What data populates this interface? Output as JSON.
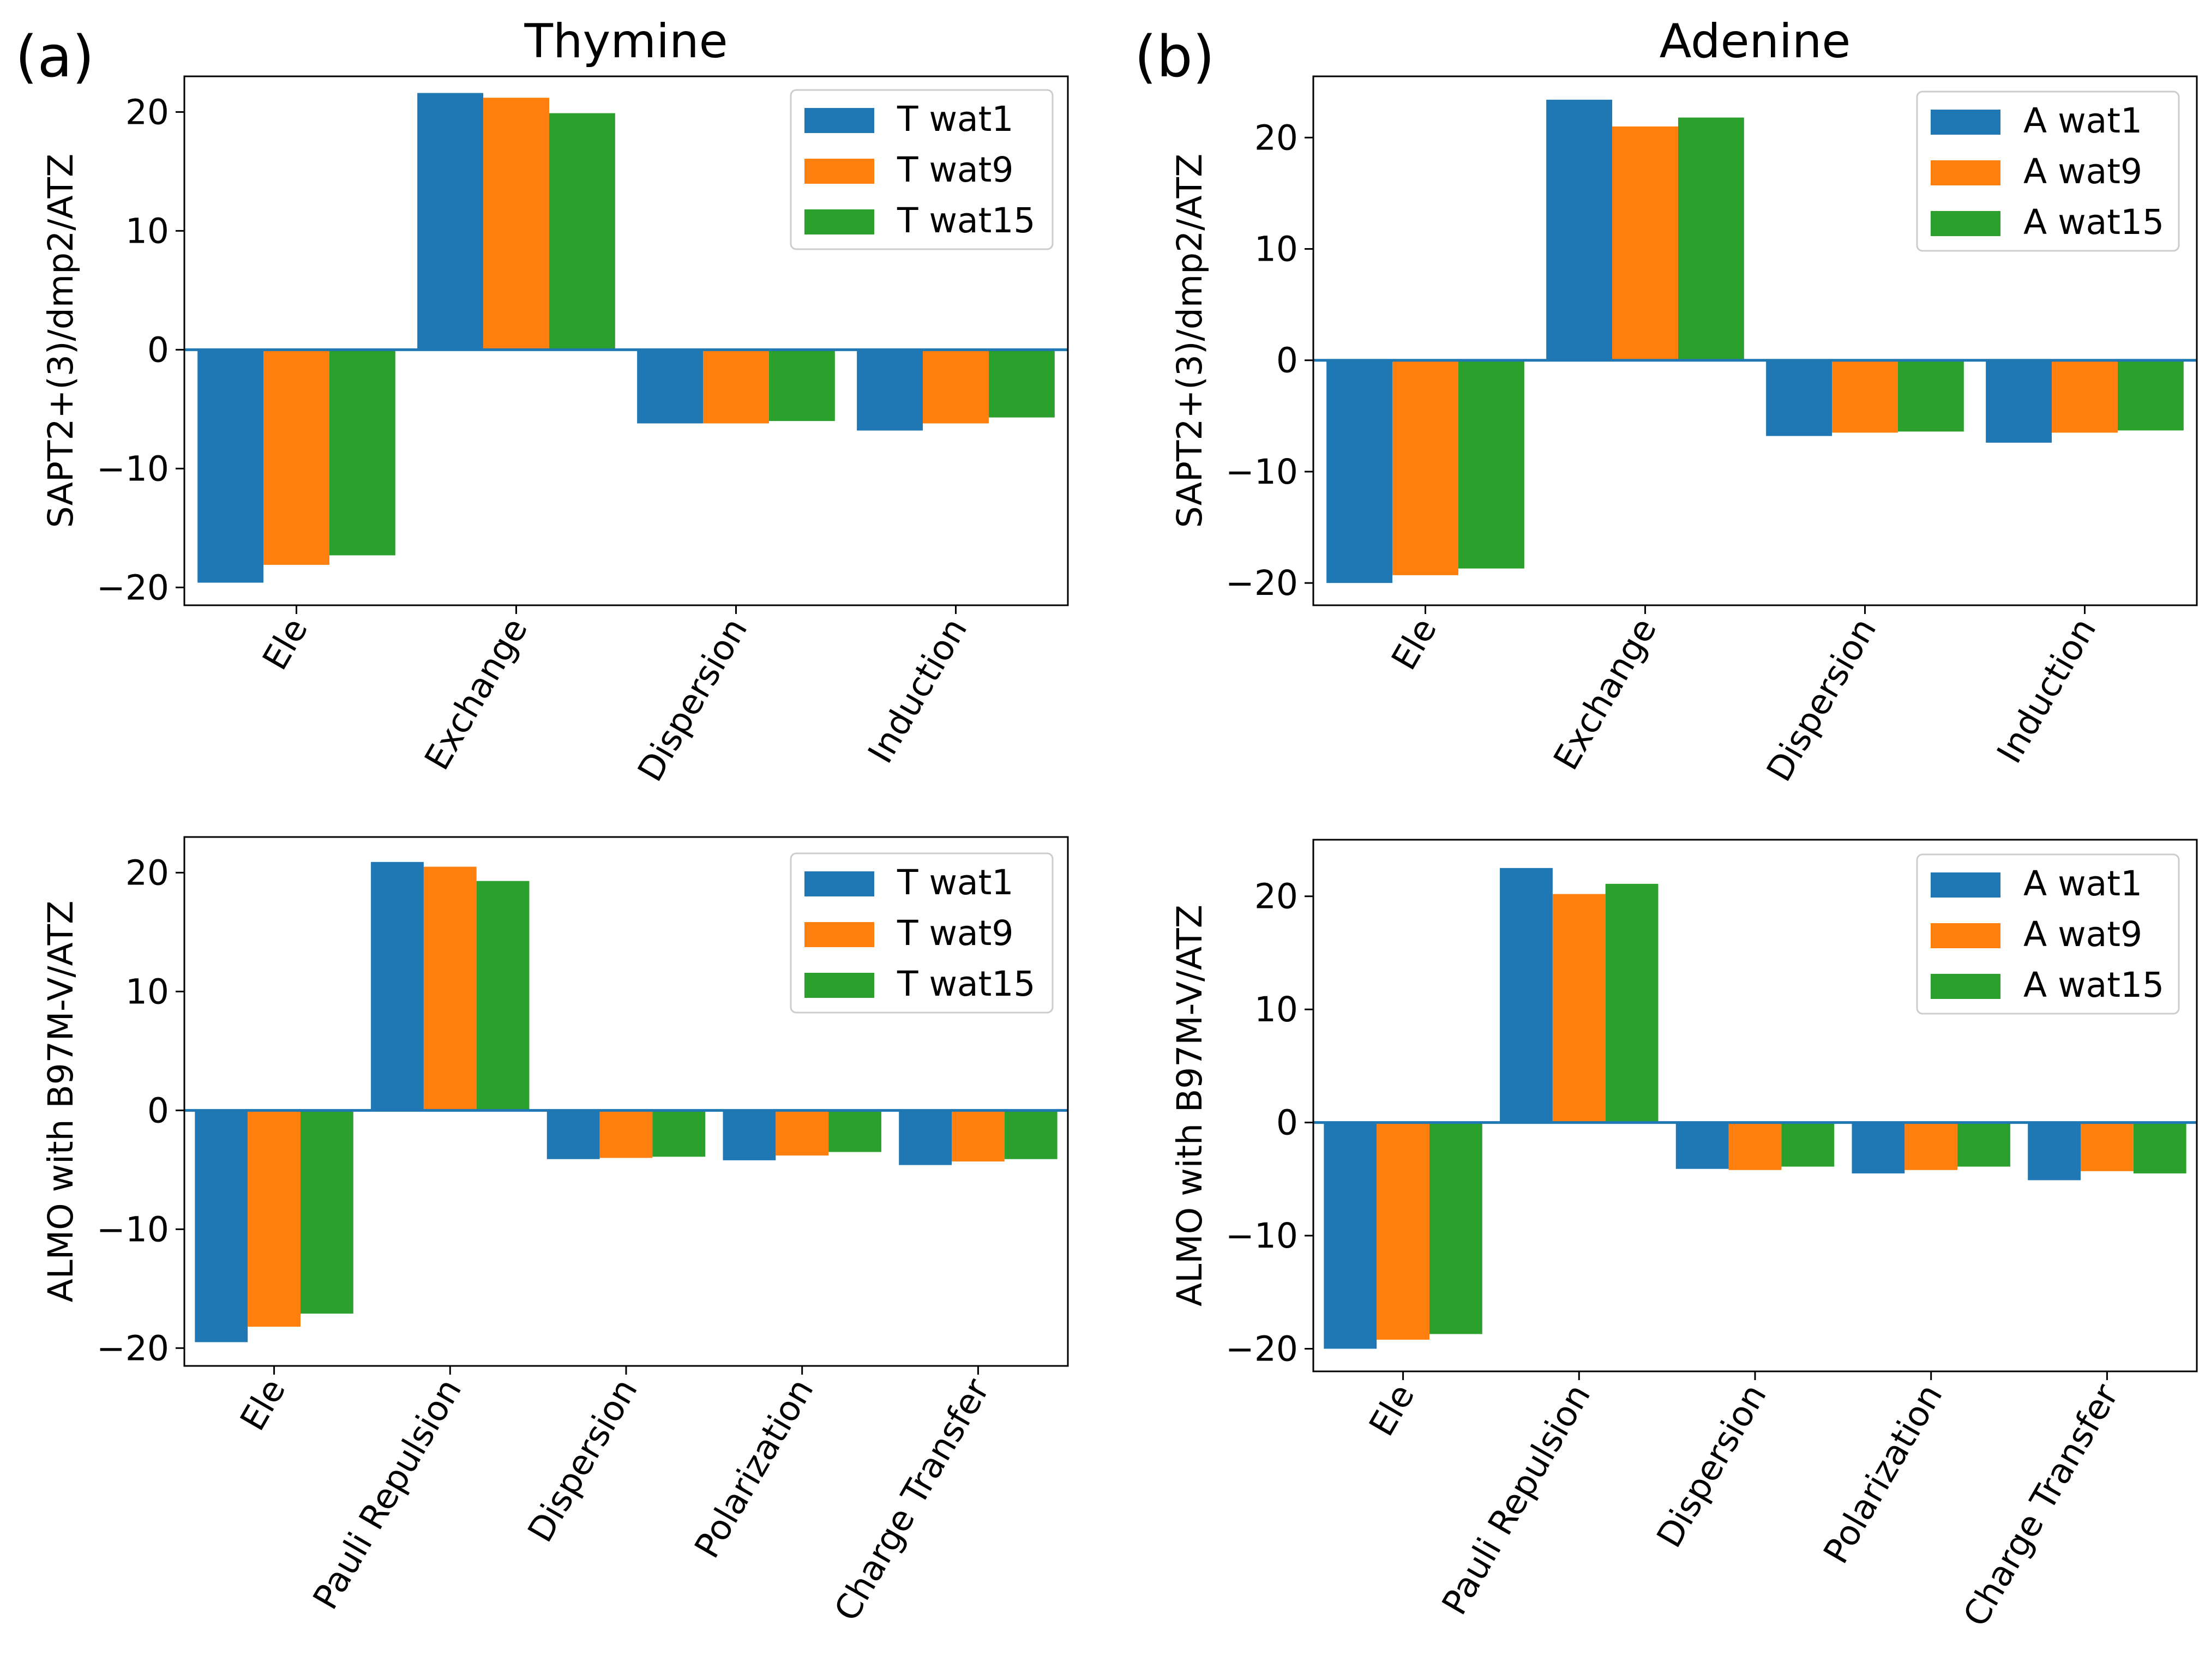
{
  "panel_labels": [
    "(a)",
    "(b)"
  ],
  "colors": {
    "series": [
      "#1f77b4",
      "#ff7f0e",
      "#2ca02c"
    ],
    "zero_line": "#1f77b4"
  },
  "chart_data": [
    {
      "type": "bar",
      "title": "Thymine",
      "xlabel": "",
      "ylabel": "SAPT2+(3)/dmp2/ATZ",
      "categories": [
        "Ele",
        "Exchange",
        "Dispersion",
        "Induction"
      ],
      "series": [
        {
          "name": "T wat1",
          "values": [
            -19.6,
            21.6,
            -6.2,
            -6.8
          ]
        },
        {
          "name": "T wat9",
          "values": [
            -18.1,
            21.2,
            -6.2,
            -6.2
          ]
        },
        {
          "name": "T wat15",
          "values": [
            -17.3,
            19.9,
            -6.0,
            -5.7
          ]
        }
      ],
      "ylim": [
        -21.5,
        23.0
      ],
      "yticks": [
        20,
        10,
        0,
        -10,
        -20
      ],
      "ytick_labels": [
        "20",
        "10",
        "0",
        "−10",
        "−20"
      ],
      "legend": "top-right",
      "grid": false
    },
    {
      "type": "bar",
      "title": "Adenine",
      "xlabel": "",
      "ylabel": "SAPT2+(3)/dmp2/ATZ",
      "categories": [
        "Ele",
        "Exchange",
        "Dispersion",
        "Induction"
      ],
      "series": [
        {
          "name": "A wat1",
          "values": [
            -20.0,
            23.4,
            -6.8,
            -7.4
          ]
        },
        {
          "name": "A wat9",
          "values": [
            -19.3,
            21.0,
            -6.5,
            -6.5
          ]
        },
        {
          "name": "A wat15",
          "values": [
            -18.7,
            21.8,
            -6.4,
            -6.3
          ]
        }
      ],
      "ylim": [
        -22.0,
        25.5
      ],
      "yticks": [
        20,
        10,
        0,
        -10,
        -20
      ],
      "ytick_labels": [
        "20",
        "10",
        "0",
        "−10",
        "−20"
      ],
      "legend": "top-right",
      "grid": false
    },
    {
      "type": "bar",
      "title": "",
      "xlabel": "",
      "ylabel": "ALMO with B97M-V/ATZ",
      "categories": [
        "Ele",
        "Pauli Repulsion",
        "Dispersion",
        "Polarization",
        "Charge Transfer"
      ],
      "series": [
        {
          "name": "T wat1",
          "values": [
            -19.5,
            20.9,
            -4.1,
            -4.2,
            -4.6
          ]
        },
        {
          "name": "T wat9",
          "values": [
            -18.2,
            20.5,
            -4.0,
            -3.8,
            -4.3
          ]
        },
        {
          "name": "T wat15",
          "values": [
            -17.1,
            19.3,
            -3.9,
            -3.5,
            -4.1
          ]
        }
      ],
      "ylim": [
        -21.5,
        23.0
      ],
      "yticks": [
        20,
        10,
        0,
        -10,
        -20
      ],
      "ytick_labels": [
        "20",
        "10",
        "0",
        "−10",
        "−20"
      ],
      "legend": "top-right",
      "grid": false
    },
    {
      "type": "bar",
      "title": "",
      "xlabel": "",
      "ylabel": "ALMO with B97M-V/ATZ",
      "categories": [
        "Ele",
        "Pauli Repulsion",
        "Dispersion",
        "Polarization",
        "Charge Transfer"
      ],
      "series": [
        {
          "name": "A wat1",
          "values": [
            -20.0,
            22.5,
            -4.1,
            -4.5,
            -5.1
          ]
        },
        {
          "name": "A wat9",
          "values": [
            -19.2,
            20.2,
            -4.2,
            -4.2,
            -4.3
          ]
        },
        {
          "name": "A wat15",
          "values": [
            -18.7,
            21.1,
            -3.9,
            -3.9,
            -4.5
          ]
        }
      ],
      "ylim": [
        -22.0,
        25.0
      ],
      "yticks": [
        20,
        10,
        0,
        -10,
        -20
      ],
      "ytick_labels": [
        "20",
        "10",
        "0",
        "−10",
        "−20"
      ],
      "legend": "top-right",
      "grid": false
    }
  ]
}
